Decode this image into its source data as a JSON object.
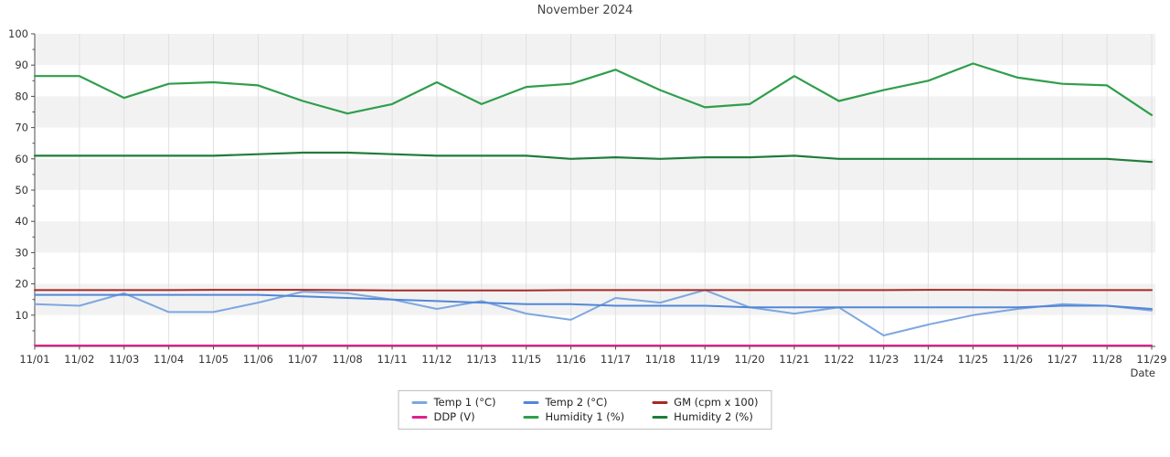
{
  "title": "November 2024",
  "chart_data": {
    "type": "line",
    "title": "November 2024",
    "xlabel": "Date",
    "ylabel": "",
    "ylim": [
      0,
      100
    ],
    "y_tick_step": 10,
    "grid": true,
    "plot_band_colors": {
      "odd": "#f2f2f2",
      "even": "#ffffff"
    },
    "gridline_color": "#e0e0e0",
    "axis_color": "#4d4d4d",
    "legend_position": "bottom",
    "categories": [
      "11/01",
      "11/02",
      "11/03",
      "11/04",
      "11/05",
      "11/06",
      "11/07",
      "11/08",
      "11/11",
      "11/12",
      "11/13",
      "11/15",
      "11/16",
      "11/17",
      "11/18",
      "11/19",
      "11/20",
      "11/21",
      "11/22",
      "11/23",
      "11/24",
      "11/25",
      "11/26",
      "11/27",
      "11/28",
      "11/29"
    ],
    "series": [
      {
        "name": "Temp 1 (°C)",
        "color": "#7da7e0",
        "values": [
          13.5,
          13,
          17,
          11,
          11,
          14,
          17.5,
          17,
          15,
          12,
          14.5,
          10.5,
          8.5,
          15.5,
          14,
          18,
          12.5,
          10.5,
          12.5,
          3.5,
          7,
          10,
          12,
          13.5,
          13,
          11.5
        ]
      },
      {
        "name": "Temp 2 (°C)",
        "color": "#5287d8",
        "values": [
          16.5,
          16.5,
          16.5,
          16.5,
          16.5,
          16.5,
          16,
          15.5,
          15,
          14.5,
          14,
          13.5,
          13.5,
          13,
          13,
          13,
          12.5,
          12.5,
          12.5,
          12.5,
          12.5,
          12.5,
          12.5,
          13,
          13,
          12
        ]
      },
      {
        "name": "GM (cpm x 100)",
        "color": "#a52a25",
        "values": [
          18,
          18,
          18,
          18,
          18.1,
          18.1,
          18.1,
          18,
          17.9,
          17.9,
          17.9,
          17.9,
          18,
          18,
          18,
          18,
          18,
          18,
          18,
          18,
          18.1,
          18.1,
          18,
          18,
          18,
          18
        ]
      },
      {
        "name": "DDP (V)",
        "color": "#e01f8b",
        "values": [
          0.3,
          0.3,
          0.3,
          0.3,
          0.3,
          0.3,
          0.3,
          0.3,
          0.3,
          0.3,
          0.3,
          0.3,
          0.3,
          0.3,
          0.3,
          0.3,
          0.3,
          0.3,
          0.3,
          0.3,
          0.3,
          0.3,
          0.3,
          0.3,
          0.3,
          0.3
        ]
      },
      {
        "name": "Humidity 1 (%)",
        "color": "#2f9e4b",
        "values": [
          86.5,
          86.5,
          79.5,
          84,
          84.5,
          83.5,
          78.5,
          74.5,
          77.5,
          84.5,
          77.5,
          83,
          84,
          88.5,
          82,
          76.5,
          77.5,
          86.5,
          78.5,
          82,
          85,
          90.5,
          86,
          84,
          83.5,
          74
        ]
      },
      {
        "name": "Humidity 2 (%)",
        "color": "#1e7d39",
        "values": [
          61,
          61,
          61,
          61,
          61,
          61.5,
          62,
          62,
          61.5,
          61,
          61,
          61,
          60,
          60.5,
          60,
          60.5,
          60.5,
          61,
          60,
          60,
          60,
          60,
          60,
          60,
          60,
          59
        ]
      }
    ]
  }
}
